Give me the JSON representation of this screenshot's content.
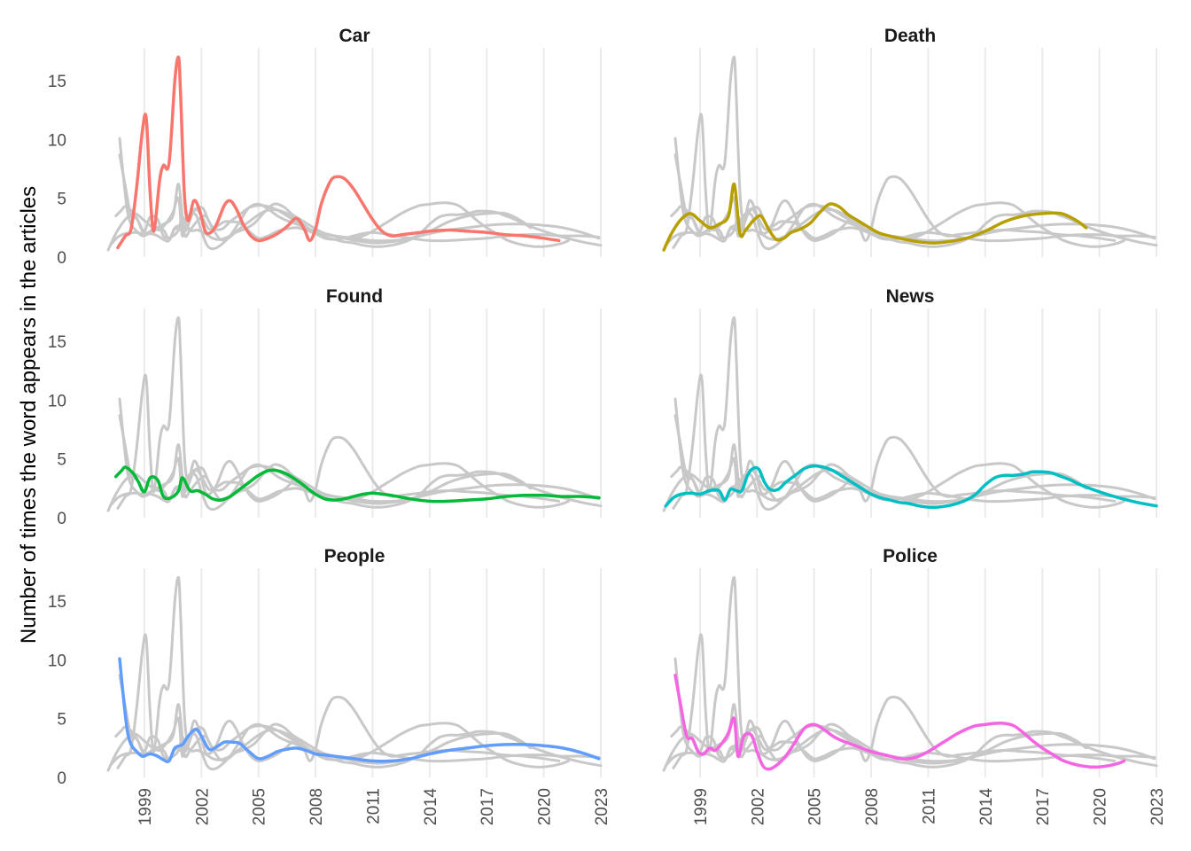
{
  "chart_data": {
    "type": "line",
    "layout": "facet 3x2",
    "ylabel": "Number of times the word appears in the articles",
    "xlabel": "",
    "xlim": [
      1997,
      2023
    ],
    "ylim": [
      0,
      17.5
    ],
    "x_ticks": [
      "1999",
      "2002",
      "2005",
      "2008",
      "2011",
      "2014",
      "2017",
      "2020",
      "2023"
    ],
    "y_ticks": [
      "0",
      "5",
      "10",
      "15"
    ],
    "grid": "vertical major gridlines",
    "background_series": "all other series drawn in light grey",
    "series": [
      {
        "name": "Car",
        "color": "#F8766D",
        "x": [
          1997.6,
          1998.0,
          1998.3,
          1998.6,
          1998.9,
          1999.1,
          1999.3,
          1999.5,
          1999.8,
          2000.0,
          2000.3,
          2000.6,
          2000.8,
          2000.9,
          2001.1,
          2001.3,
          2001.6,
          2001.9,
          2002.2,
          2002.5,
          2002.8,
          2003.2,
          2003.5,
          2003.8,
          2004.2,
          2004.6,
          2005.0,
          2005.5,
          2006.0,
          2006.5,
          2007.0,
          2007.4,
          2007.7,
          2008.0,
          2008.3,
          2008.7,
          2009.0,
          2009.5,
          2010.0,
          2010.5,
          2011.0,
          2011.5,
          2012.0,
          2012.5,
          2013.0,
          2013.5,
          2014.0,
          2015.0,
          2016.0,
          2017.0,
          2018.0,
          2019.0,
          2020.0,
          2020.8
        ],
        "y": [
          0.8,
          1.8,
          2.4,
          6.0,
          10.8,
          11.8,
          5.5,
          2.2,
          6.5,
          7.8,
          8.0,
          15.0,
          17.0,
          14.0,
          5.5,
          3.1,
          4.8,
          4.0,
          2.2,
          2.1,
          2.8,
          4.4,
          4.8,
          4.2,
          2.8,
          1.8,
          1.4,
          1.6,
          2.0,
          2.6,
          3.3,
          2.4,
          1.4,
          2.4,
          4.5,
          6.2,
          6.8,
          6.7,
          5.8,
          4.5,
          3.2,
          2.2,
          1.8,
          1.9,
          2.0,
          2.1,
          2.2,
          2.3,
          2.2,
          2.1,
          1.9,
          1.8,
          1.6,
          1.4
        ]
      },
      {
        "name": "Death",
        "color": "#B79F00",
        "x": [
          1997.1,
          1997.5,
          1998.0,
          1998.5,
          1999.0,
          1999.5,
          2000.0,
          2000.5,
          2000.8,
          2001.1,
          2001.4,
          2001.8,
          2002.2,
          2002.6,
          2003.0,
          2003.4,
          2003.8,
          2004.3,
          2004.8,
          2005.3,
          2005.8,
          2006.3,
          2006.8,
          2007.3,
          2007.8,
          2008.5,
          2009.5,
          2010.5,
          2011.3,
          2012.0,
          2013.0,
          2014.0,
          2015.0,
          2016.0,
          2017.0,
          2018.0,
          2018.8,
          2019.3
        ],
        "y": [
          0.6,
          2.0,
          3.2,
          3.7,
          3.1,
          2.5,
          2.8,
          3.5,
          6.2,
          2.0,
          2.3,
          3.1,
          3.5,
          2.4,
          1.5,
          1.6,
          2.1,
          2.4,
          2.9,
          3.8,
          4.5,
          4.3,
          3.6,
          3.1,
          2.6,
          2.0,
          1.6,
          1.3,
          1.2,
          1.3,
          1.6,
          2.2,
          3.0,
          3.5,
          3.7,
          3.7,
          3.1,
          2.5
        ]
      },
      {
        "name": "Found",
        "color": "#00BA38",
        "x": [
          1997.5,
          1997.8,
          1998.0,
          1998.4,
          1998.7,
          1999.0,
          1999.3,
          1999.7,
          2000.0,
          2000.4,
          2000.8,
          2001.0,
          2001.4,
          2001.8,
          2002.2,
          2002.6,
          2003.0,
          2003.5,
          2004.0,
          2004.5,
          2005.0,
          2005.5,
          2006.0,
          2006.5,
          2007.0,
          2007.5,
          2008.0,
          2008.5,
          2009.0,
          2009.5,
          2010.0,
          2010.5,
          2011.0,
          2011.5,
          2012.0,
          2013.0,
          2014.0,
          2015.0,
          2016.0,
          2017.0,
          2018.0,
          2019.0,
          2020.0,
          2021.0,
          2022.0,
          2022.9
        ],
        "y": [
          3.5,
          4.0,
          4.3,
          3.8,
          3.0,
          2.2,
          3.4,
          3.2,
          1.8,
          1.7,
          2.3,
          3.4,
          2.3,
          2.3,
          2.0,
          1.6,
          1.5,
          1.8,
          2.4,
          3.0,
          3.6,
          4.0,
          4.0,
          3.7,
          3.2,
          2.6,
          2.0,
          1.6,
          1.5,
          1.6,
          1.8,
          2.0,
          2.1,
          2.0,
          1.9,
          1.6,
          1.4,
          1.4,
          1.5,
          1.6,
          1.8,
          1.9,
          1.9,
          1.8,
          1.8,
          1.7
        ]
      },
      {
        "name": "News",
        "color": "#00BFC4",
        "x": [
          1997.2,
          1997.6,
          1998.0,
          1998.5,
          1999.0,
          1999.5,
          2000.0,
          2000.3,
          2000.6,
          2000.9,
          2001.2,
          2001.5,
          2001.8,
          2002.1,
          2002.4,
          2002.7,
          2003.1,
          2003.5,
          2004.0,
          2004.5,
          2005.0,
          2005.5,
          2006.0,
          2006.5,
          2007.0,
          2007.5,
          2008.0,
          2008.5,
          2009.0,
          2009.5,
          2010.0,
          2010.5,
          2011.0,
          2011.5,
          2012.0,
          2012.5,
          2013.0,
          2013.5,
          2014.0,
          2014.5,
          2015.0,
          2015.5,
          2016.0,
          2016.5,
          2017.0,
          2017.5,
          2018.0,
          2018.5,
          2019.0,
          2020.0,
          2021.0,
          2022.0,
          2023.0
        ],
        "y": [
          1.0,
          1.7,
          2.0,
          2.1,
          2.0,
          2.3,
          2.3,
          1.5,
          2.4,
          2.3,
          2.3,
          3.6,
          4.2,
          4.1,
          3.0,
          2.4,
          2.4,
          3.0,
          3.6,
          4.2,
          4.4,
          4.3,
          4.0,
          3.5,
          3.0,
          2.5,
          2.0,
          1.7,
          1.5,
          1.3,
          1.2,
          1.0,
          0.9,
          0.9,
          1.0,
          1.2,
          1.5,
          2.0,
          2.8,
          3.4,
          3.6,
          3.6,
          3.7,
          3.9,
          3.9,
          3.8,
          3.5,
          3.2,
          2.8,
          2.2,
          1.7,
          1.3,
          1.0
        ]
      },
      {
        "name": "People",
        "color": "#619CFF",
        "x": [
          1997.7,
          1997.9,
          1998.1,
          1998.3,
          1998.6,
          1998.9,
          1999.3,
          1999.7,
          2000.0,
          2000.3,
          2000.6,
          2001.0,
          2001.3,
          2001.7,
          2002.0,
          2002.4,
          2002.8,
          2003.2,
          2003.6,
          2004.0,
          2004.5,
          2005.0,
          2005.5,
          2006.0,
          2006.5,
          2007.0,
          2007.5,
          2008.0,
          2008.5,
          2009.0,
          2010.0,
          2011.0,
          2012.0,
          2013.0,
          2014.0,
          2015.0,
          2016.0,
          2017.0,
          2018.0,
          2019.0,
          2020.0,
          2021.0,
          2022.0,
          2022.9
        ],
        "y": [
          10.1,
          6.8,
          4.0,
          2.8,
          2.2,
          1.8,
          2.0,
          1.8,
          1.5,
          1.4,
          2.5,
          2.8,
          3.5,
          4.1,
          3.5,
          2.4,
          2.6,
          3.0,
          3.0,
          2.9,
          2.2,
          1.6,
          1.8,
          2.2,
          2.4,
          2.5,
          2.3,
          2.0,
          1.9,
          1.8,
          1.6,
          1.4,
          1.4,
          1.6,
          2.0,
          2.3,
          2.5,
          2.7,
          2.8,
          2.8,
          2.7,
          2.5,
          2.1,
          1.6
        ]
      },
      {
        "name": "Police",
        "color": "#F564E3",
        "x": [
          1997.7,
          1998.0,
          1998.3,
          1998.6,
          1998.9,
          1999.2,
          1999.5,
          1999.8,
          2000.2,
          2000.5,
          2000.8,
          2001.0,
          2001.3,
          2001.7,
          2002.0,
          2002.3,
          2002.6,
          2003.0,
          2003.5,
          2004.0,
          2004.5,
          2005.0,
          2005.5,
          2006.0,
          2006.5,
          2007.0,
          2007.5,
          2008.0,
          2008.5,
          2009.0,
          2009.5,
          2010.0,
          2010.5,
          2011.0,
          2011.5,
          2012.0,
          2012.5,
          2013.0,
          2013.5,
          2014.0,
          2014.5,
          2015.0,
          2015.5,
          2016.0,
          2016.5,
          2017.0,
          2017.5,
          2018.0,
          2018.5,
          2019.0,
          2019.5,
          2020.0,
          2020.5,
          2021.0,
          2021.3
        ],
        "y": [
          8.7,
          6.0,
          3.5,
          3.3,
          2.2,
          2.0,
          2.5,
          2.3,
          3.0,
          3.8,
          5.0,
          1.8,
          3.5,
          3.6,
          2.2,
          1.0,
          0.7,
          1.0,
          1.8,
          3.0,
          4.2,
          4.5,
          4.1,
          3.5,
          3.1,
          2.8,
          2.5,
          2.2,
          2.0,
          1.8,
          1.6,
          1.6,
          1.8,
          2.2,
          2.7,
          3.2,
          3.7,
          4.1,
          4.4,
          4.5,
          4.6,
          4.6,
          4.4,
          3.8,
          3.1,
          2.5,
          2.0,
          1.5,
          1.2,
          1.0,
          0.9,
          0.9,
          1.0,
          1.2,
          1.4
        ]
      }
    ]
  }
}
